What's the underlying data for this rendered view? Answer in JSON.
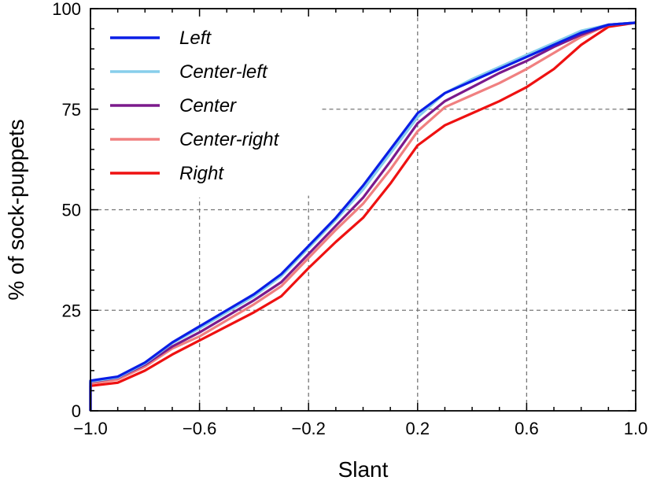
{
  "chart_data": {
    "type": "line",
    "title": "",
    "xlabel": "Slant",
    "ylabel": "% of sock-puppets",
    "xlim": [
      -1.0,
      1.0
    ],
    "ylim": [
      0,
      100
    ],
    "x_ticks": [
      -1.0,
      -0.6,
      -0.2,
      0.2,
      0.6,
      1.0
    ],
    "x_tick_labels": [
      "−1.0",
      "−0.6",
      "−0.2",
      "0.2",
      "0.6",
      "1.0"
    ],
    "y_ticks": [
      0,
      25,
      50,
      75,
      100
    ],
    "y_tick_labels": [
      "0",
      "25",
      "50",
      "75",
      "100"
    ],
    "grid": "dashed, partial",
    "legend_position": "top-left",
    "step": true,
    "x": [
      -1.0,
      -0.9,
      -0.8,
      -0.7,
      -0.6,
      -0.5,
      -0.4,
      -0.3,
      -0.2,
      -0.1,
      0.0,
      0.1,
      0.2,
      0.3,
      0.4,
      0.5,
      0.6,
      0.7,
      0.8,
      0.9,
      1.0
    ],
    "series": [
      {
        "name": "Left",
        "color": "#0a1ee6",
        "values": [
          7.5,
          8.5,
          12,
          17,
          21,
          25,
          29,
          34,
          41,
          48,
          56,
          65,
          74,
          79,
          82,
          85,
          88,
          91,
          94,
          96,
          96.5
        ]
      },
      {
        "name": "Center-left",
        "color": "#87ceeb",
        "values": [
          7.3,
          8.3,
          11.8,
          16.8,
          20.5,
          24.5,
          28.5,
          33.5,
          40.5,
          47.5,
          55,
          64,
          73,
          79,
          82.5,
          85.5,
          88.5,
          91.5,
          94.5,
          96,
          96.5
        ]
      },
      {
        "name": "Center",
        "color": "#7b1a8c",
        "values": [
          7.2,
          8.2,
          11.5,
          16,
          19.5,
          23.5,
          27.5,
          32,
          39,
          46,
          53,
          62,
          71.5,
          77,
          80.5,
          84,
          87,
          90.5,
          93.5,
          96,
          96.5
        ]
      },
      {
        "name": "Center-right",
        "color": "#f08080",
        "values": [
          6.8,
          7.8,
          11,
          15.5,
          18.5,
          22.5,
          26.5,
          31,
          38,
          45,
          51.5,
          60,
          69.5,
          75.5,
          78.5,
          81.5,
          85,
          89,
          93,
          96,
          96.5
        ]
      },
      {
        "name": "Right",
        "color": "#ee1111",
        "values": [
          6.2,
          7.0,
          10,
          14,
          17.5,
          21,
          24.5,
          28.5,
          35.5,
          42,
          48,
          56.5,
          66,
          71,
          74,
          77,
          80.5,
          85,
          91,
          95.5,
          96.5
        ]
      }
    ]
  }
}
